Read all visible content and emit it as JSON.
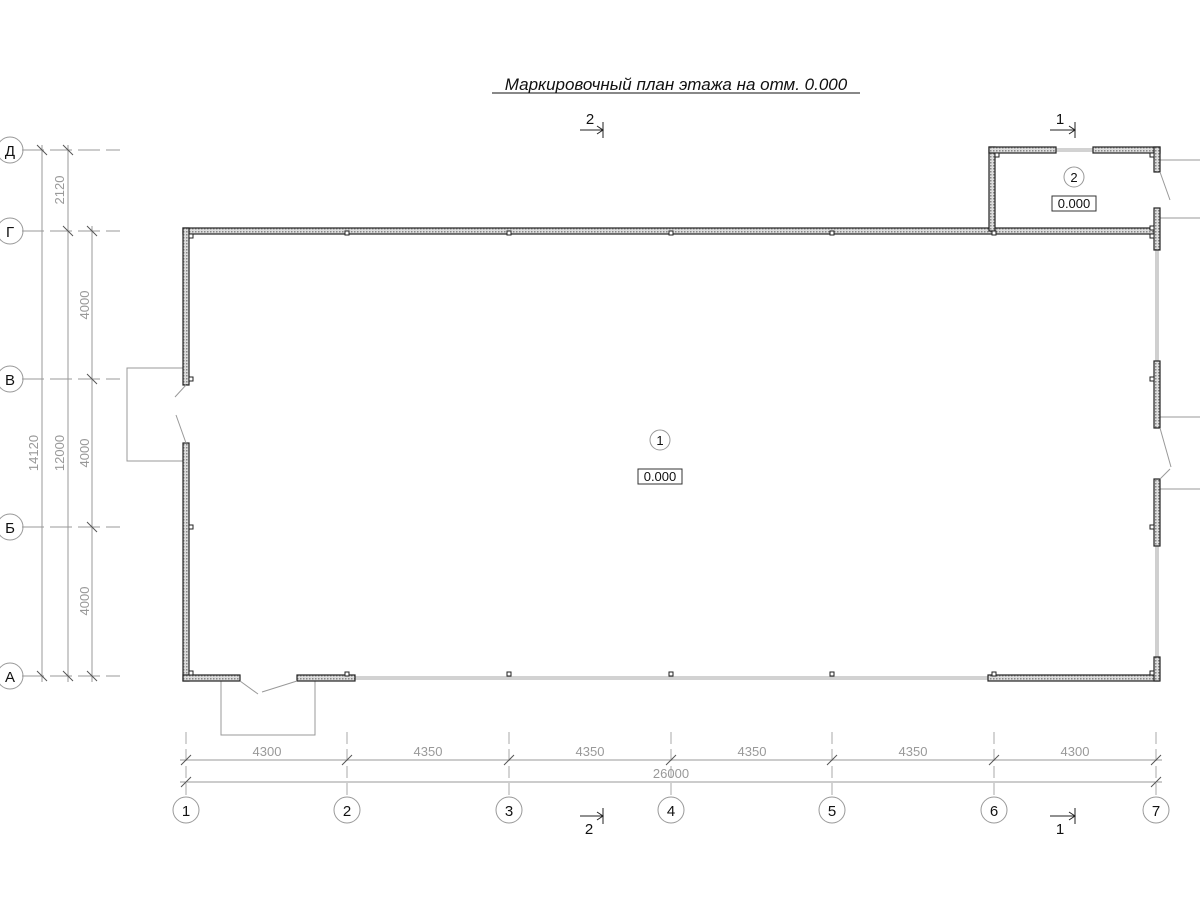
{
  "title": "Маркировочный план этажа на отм. 0.000",
  "axes_letters": [
    "Д",
    "Г",
    "В",
    "Б",
    "А"
  ],
  "axes_numbers": [
    "1",
    "2",
    "3",
    "4",
    "5",
    "6",
    "7"
  ],
  "dims_bottom": [
    "4300",
    "4350",
    "4350",
    "4350",
    "4350",
    "4300"
  ],
  "dim_total_bottom": "26000",
  "dims_left": {
    "d_g": "2120",
    "g_v": "4000",
    "v_b": "4000",
    "b_a": "4000",
    "total_12000": "12000",
    "total_14120": "14120"
  },
  "rooms": [
    {
      "number": "1",
      "level": "0.000"
    },
    {
      "number": "2",
      "level": "0.000"
    }
  ],
  "sections": {
    "top_left": "2",
    "top_right": "1",
    "bottom_left": "2",
    "bottom_right": "1"
  },
  "colors": {
    "lines": "#222222",
    "dimensions": "#999999",
    "hatch": "#bbbbbb"
  }
}
